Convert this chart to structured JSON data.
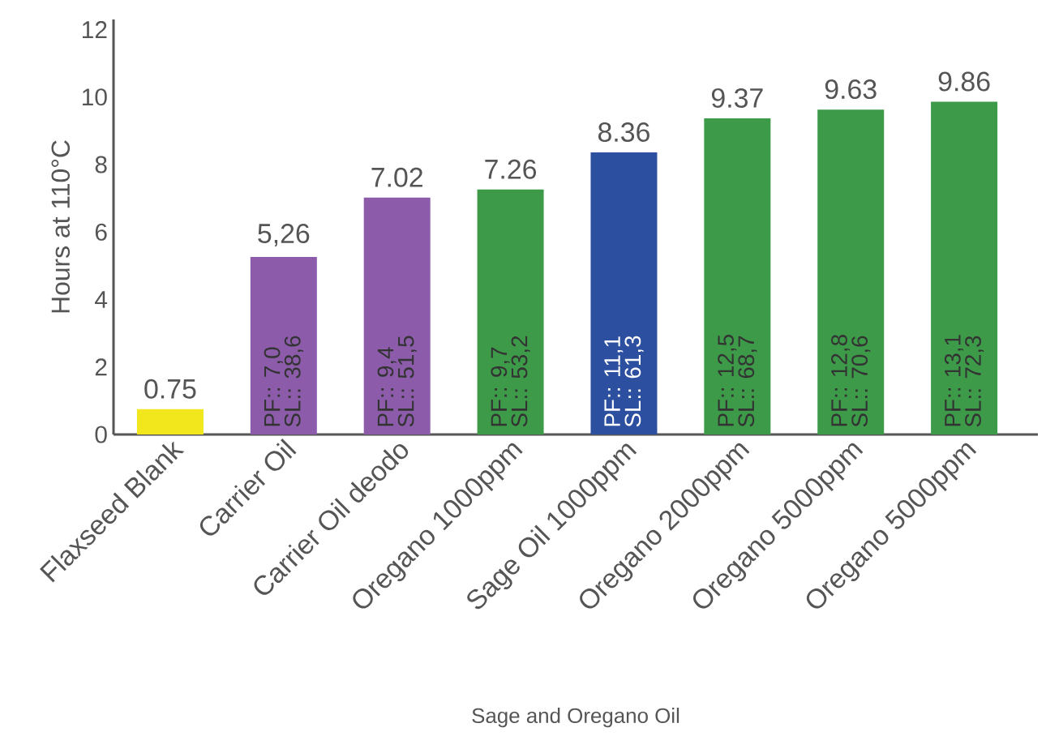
{
  "chart_data": {
    "type": "bar",
    "xlabel": "Sage and Oregano Oil",
    "ylabel": "Hours at 110°C",
    "categories": [
      "Flaxseed Blank",
      "Carrier Oil",
      "Carrier Oil deodo",
      "Oregano 1000ppm",
      "Sage Oil 1000ppm",
      "Oregano 2000ppm",
      "Oregano 5000ppm",
      "Oregano 5000ppm"
    ],
    "values": [
      0.75,
      5.26,
      7.02,
      7.26,
      8.36,
      9.37,
      9.63,
      9.86
    ],
    "value_labels": [
      "0.75",
      "5,26",
      "7.02",
      "7.26",
      "8.36",
      "9.37",
      "9.63",
      "9.86"
    ],
    "colors": [
      "#f2e61c",
      "#8c5cab",
      "#8c5cab",
      "#3c9a48",
      "#2c4fa0",
      "#3c9a48",
      "#3c9a48",
      "#3c9a48"
    ],
    "ylim": [
      0,
      12.3
    ],
    "yticks": [
      0,
      2,
      4,
      6,
      8,
      10,
      12
    ],
    "grid": false,
    "annotations": [
      "PF:: 7,0",
      "SL:: 38,6",
      "PF:: 9,4",
      "SL:: 51,5",
      "PF:: 9,7",
      "SL:: 53,2",
      "PF:: 11,1",
      "SL:: 61,3",
      "PF:: 12,5",
      "SL:: 68,7",
      "PF:: 12,8",
      "SL:: 70,6",
      "PF:: 13,1",
      "SL:: 72,3"
    ]
  }
}
